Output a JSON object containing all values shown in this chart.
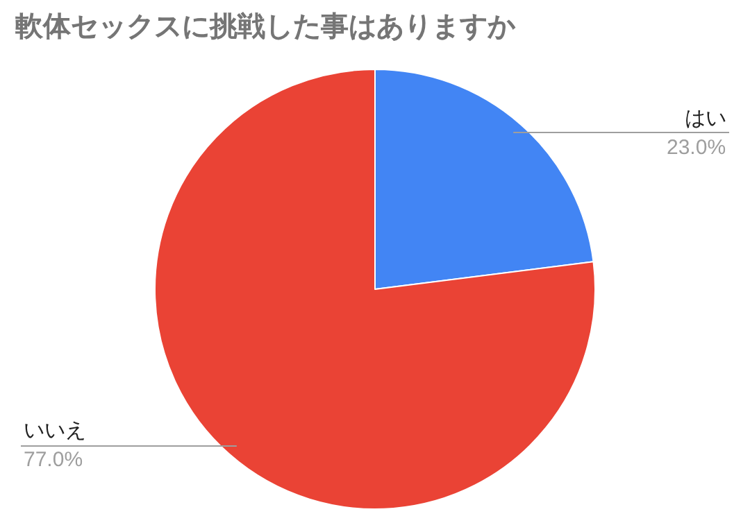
{
  "chart_data": {
    "type": "pie",
    "title": "軟体セックスに挑戦した事はありますか",
    "categories": [
      "はい",
      "いいえ"
    ],
    "values": [
      23.0,
      77.0
    ],
    "colors": [
      "#4285f4",
      "#ea4335"
    ],
    "value_labels": [
      "23.0%",
      "77.0%"
    ],
    "legend": false
  }
}
